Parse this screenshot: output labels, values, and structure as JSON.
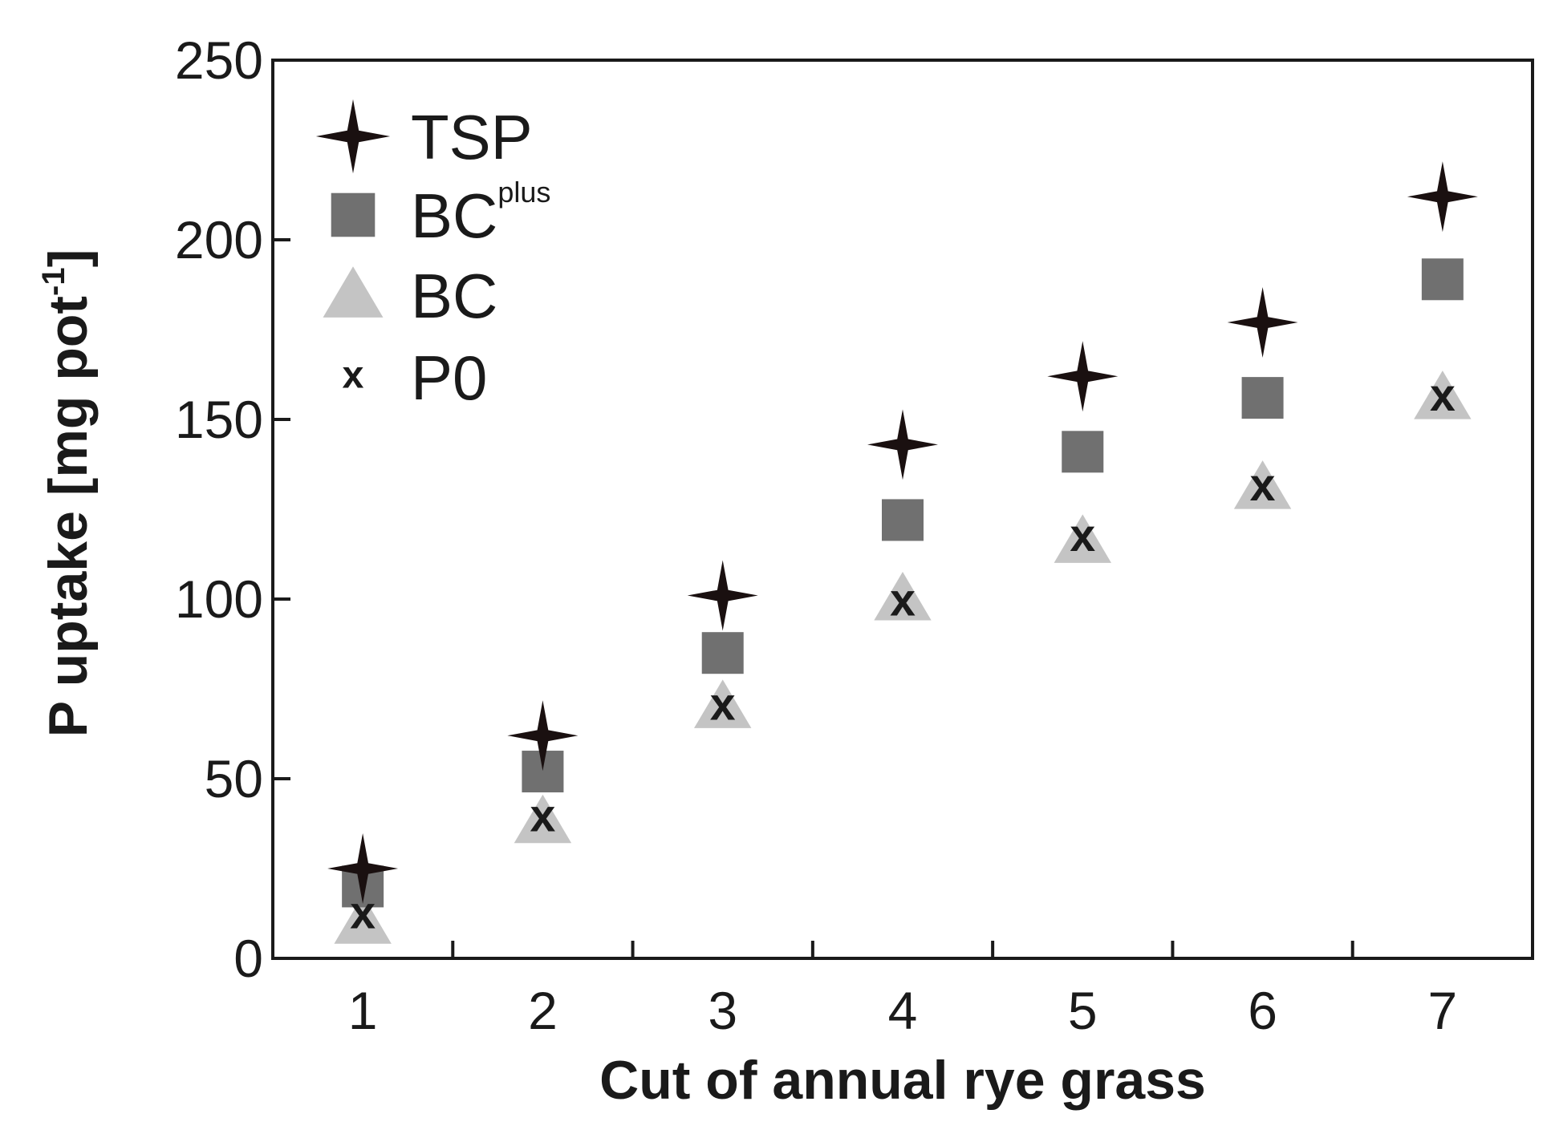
{
  "chart_data": {
    "type": "scatter",
    "title": "",
    "xlabel": "Cut of annual rye grass",
    "ylabel": "P uptake [mg pot",
    "ylabel_sup": "-1",
    "ylabel_end": "]",
    "xlim": [
      0.5,
      7.5
    ],
    "ylim": [
      0,
      250
    ],
    "xticks": [
      "1",
      "2",
      "3",
      "4",
      "5",
      "6",
      "7"
    ],
    "yticks": [
      "0",
      "50",
      "100",
      "150",
      "200",
      "250"
    ],
    "x": [
      1,
      2,
      3,
      4,
      5,
      6,
      7
    ],
    "legend_position": "top-left",
    "series": [
      {
        "name": "TSP",
        "label": "TSP",
        "sup": "",
        "marker": "four-point-star",
        "color": "#1a1010",
        "values": [
          25,
          62,
          101,
          143,
          162,
          177,
          212
        ]
      },
      {
        "name": "BCplus",
        "label": "BC",
        "sup": "plus",
        "marker": "square",
        "color": "#707070",
        "values": [
          20,
          52,
          85,
          122,
          141,
          156,
          189
        ]
      },
      {
        "name": "BC",
        "label": "BC",
        "sup": "",
        "marker": "triangle",
        "color": "#c4c4c4",
        "values": [
          10,
          38,
          70,
          100,
          116,
          131,
          156
        ]
      },
      {
        "name": "P0",
        "label": "P0",
        "sup": "",
        "marker": "x",
        "color": "#1a1a1a",
        "values": [
          12,
          39,
          70,
          99,
          117,
          131,
          156
        ]
      }
    ]
  }
}
